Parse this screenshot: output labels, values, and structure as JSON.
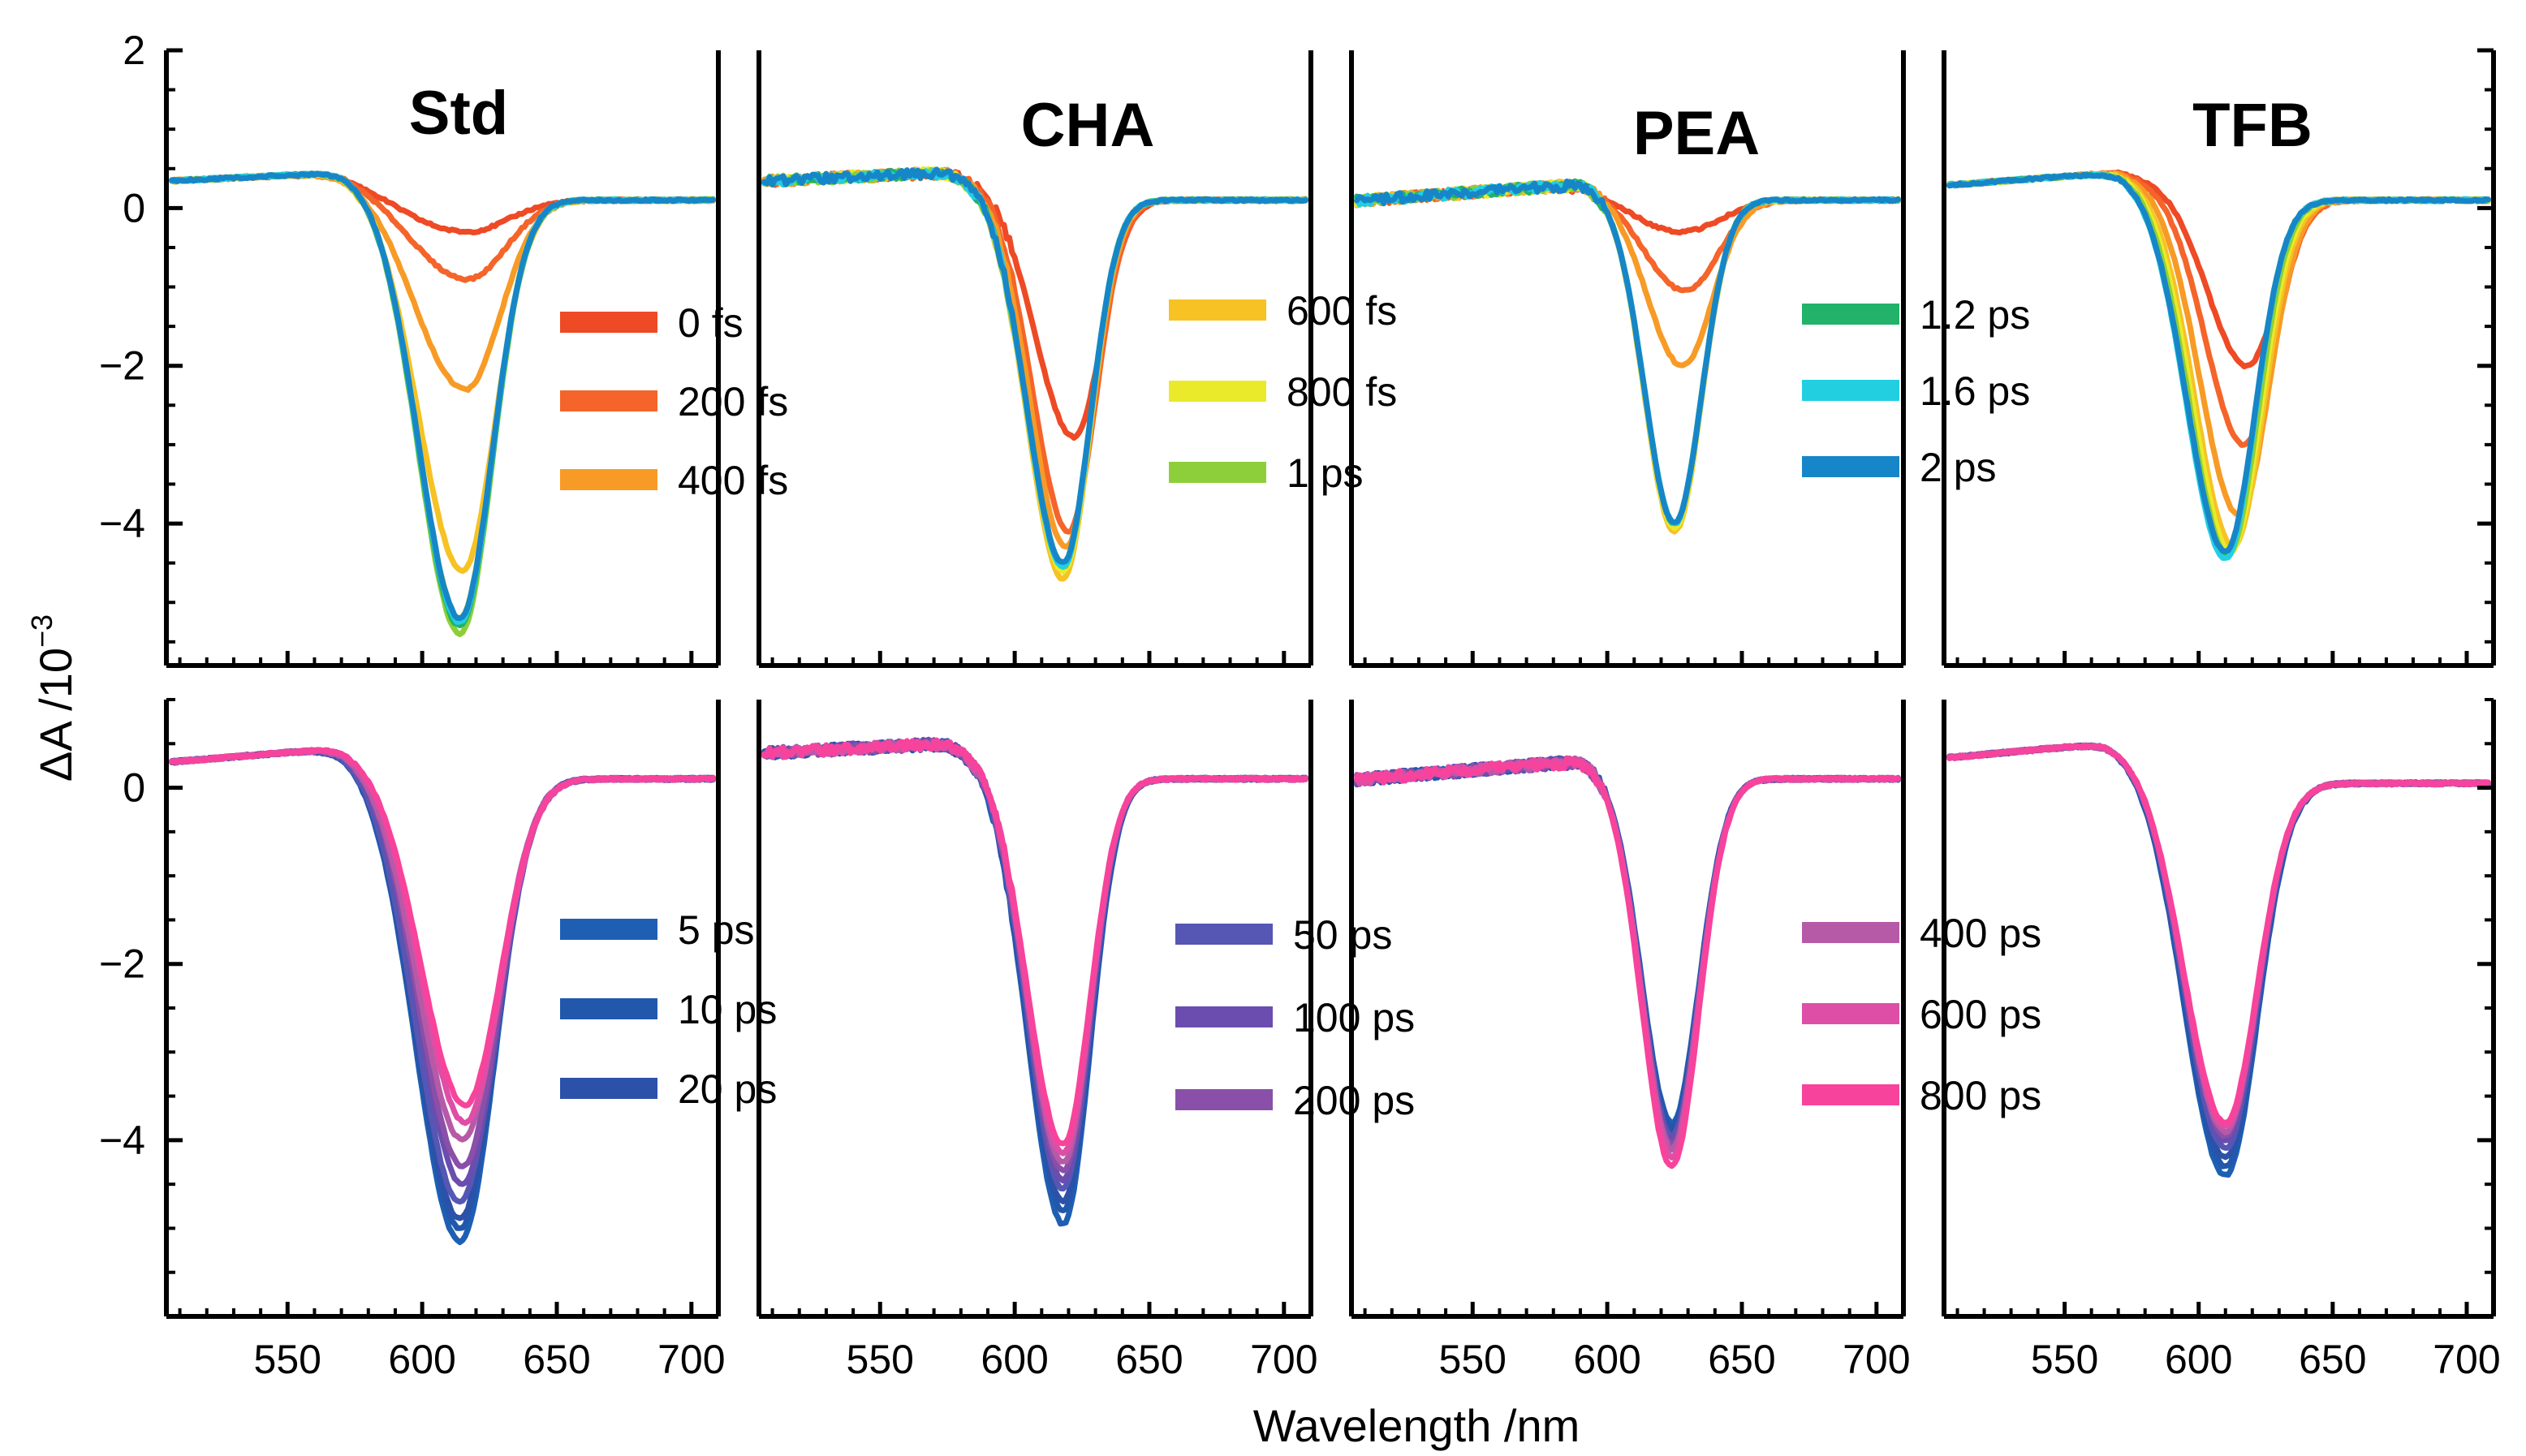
{
  "chart_data": {
    "type": "line",
    "title": "",
    "xlabel": "Wavelength /nm",
    "ylabel": "ΔA /10",
    "ylabel_exponent": "−3",
    "xlim": [
      505,
      710
    ],
    "x_ticks": [
      550,
      600,
      650,
      700
    ],
    "x_tick_labels": [
      "550",
      "600",
      "650",
      "700"
    ],
    "top_row": {
      "ylim": [
        -5.8,
        2.0
      ],
      "y_ticks": [
        2,
        0,
        -2,
        -4
      ],
      "y_tick_labels": [
        "2",
        "0",
        "−2",
        "−4"
      ]
    },
    "bottom_row": {
      "ylim": [
        -6.0,
        1.0
      ],
      "y_ticks": [
        0,
        -2,
        -4
      ],
      "y_tick_labels": [
        "0",
        "−2",
        "−4"
      ]
    },
    "legend_groups": [
      {
        "panel": "Std",
        "row": "top",
        "entries": [
          {
            "label": "0 fs",
            "color": "#ee4a25"
          },
          {
            "label": "200 fs",
            "color": "#f5642a"
          },
          {
            "label": "400 fs",
            "color": "#f79b26"
          }
        ]
      },
      {
        "panel": "CHA",
        "row": "top",
        "entries": [
          {
            "label": "600 fs",
            "color": "#f6c224"
          },
          {
            "label": "800 fs",
            "color": "#eaea2a"
          },
          {
            "label": "1 ps",
            "color": "#8dcf3a"
          }
        ]
      },
      {
        "panel": "PEA",
        "row": "top",
        "entries": [
          {
            "label": "1.2 ps",
            "color": "#22b26a"
          },
          {
            "label": "1.6 ps",
            "color": "#22cfe1"
          },
          {
            "label": "2 ps",
            "color": "#1786c8"
          }
        ]
      },
      {
        "panel": "Std",
        "row": "bottom",
        "entries": [
          {
            "label": "5 ps",
            "color": "#1e5fb4"
          },
          {
            "label": "10 ps",
            "color": "#2258ac"
          },
          {
            "label": "20 ps",
            "color": "#2b51a8"
          }
        ]
      },
      {
        "panel": "CHA",
        "row": "bottom",
        "entries": [
          {
            "label": "50 ps",
            "color": "#5656b4"
          },
          {
            "label": "100 ps",
            "color": "#6a4dae"
          },
          {
            "label": "200 ps",
            "color": "#8a4fa8"
          }
        ]
      },
      {
        "panel": "PEA",
        "row": "bottom",
        "entries": [
          {
            "label": "400 ps",
            "color": "#b65aa8"
          },
          {
            "label": "600 ps",
            "color": "#de4ea6"
          },
          {
            "label": "800 ps",
            "color": "#f7439c"
          }
        ]
      }
    ],
    "panels": [
      {
        "name": "Std",
        "top": {
          "background": {
            "x0": 510,
            "x1": 570,
            "b0": 0.35,
            "b1": 0.45,
            "decay_to": 620,
            "end": 0.1
          },
          "series": [
            {
              "name": "0 fs",
              "min": -0.3,
              "center": 617,
              "wl": 22,
              "wr": 15
            },
            {
              "name": "200 fs",
              "min": -0.9,
              "center": 617,
              "wl": 20,
              "wr": 14
            },
            {
              "name": "400 fs",
              "min": -2.3,
              "center": 616,
              "wl": 18,
              "wr": 13
            },
            {
              "name": "600 fs",
              "min": -4.6,
              "center": 615,
              "wl": 16,
              "wr": 12
            },
            {
              "name": "800 fs",
              "min": -5.2,
              "center": 614,
              "wl": 15,
              "wr": 12
            },
            {
              "name": "1 ps",
              "min": -5.4,
              "center": 614,
              "wl": 15,
              "wr": 12
            },
            {
              "name": "1.2 ps",
              "min": -5.3,
              "center": 614,
              "wl": 15,
              "wr": 12
            },
            {
              "name": "1.6 ps",
              "min": -5.25,
              "center": 614,
              "wl": 15,
              "wr": 12
            },
            {
              "name": "2 ps",
              "min": -5.2,
              "center": 614,
              "wl": 15,
              "wr": 12
            }
          ]
        },
        "bottom": {
          "background": {
            "x0": 510,
            "x1": 570,
            "b0": 0.3,
            "b1": 0.45,
            "decay_to": 625,
            "end": 0.1
          },
          "series": [
            {
              "name": "5 ps",
              "min": -5.15,
              "center": 614,
              "wl": 16,
              "wr": 13
            },
            {
              "name": "10 ps",
              "min": -5.0,
              "center": 614,
              "wl": 16,
              "wr": 13
            },
            {
              "name": "20 ps",
              "min": -4.9,
              "center": 614,
              "wl": 16,
              "wr": 13
            },
            {
              "name": "50 ps",
              "min": -4.7,
              "center": 614,
              "wl": 16,
              "wr": 13
            },
            {
              "name": "100 ps",
              "min": -4.5,
              "center": 615,
              "wl": 16,
              "wr": 13
            },
            {
              "name": "200 ps",
              "min": -4.3,
              "center": 615,
              "wl": 16,
              "wr": 13
            },
            {
              "name": "400 ps",
              "min": -4.0,
              "center": 615,
              "wl": 16,
              "wr": 13
            },
            {
              "name": "600 ps",
              "min": -3.8,
              "center": 616,
              "wl": 16,
              "wr": 13
            },
            {
              "name": "800 ps",
              "min": -3.6,
              "center": 616,
              "wl": 16,
              "wr": 13
            }
          ]
        }
      },
      {
        "name": "CHA",
        "top": {
          "background": {
            "x0": 510,
            "x1": 575,
            "b0": 0.35,
            "b1": 0.45,
            "decay_to": 630,
            "end": 0.1
          },
          "series": [
            {
              "name": "0 fs",
              "min": -2.9,
              "center": 622,
              "wl": 14,
              "wr": 10
            },
            {
              "name": "200 fs",
              "min": -4.1,
              "center": 620,
              "wl": 13,
              "wr": 10
            },
            {
              "name": "400 fs",
              "min": -4.3,
              "center": 619,
              "wl": 13,
              "wr": 10
            },
            {
              "name": "600 fs",
              "min": -4.7,
              "center": 618,
              "wl": 13,
              "wr": 10
            },
            {
              "name": "800 fs",
              "min": -4.6,
              "center": 618,
              "wl": 13,
              "wr": 10
            },
            {
              "name": "1 ps",
              "min": -4.55,
              "center": 618,
              "wl": 13,
              "wr": 10
            },
            {
              "name": "1.2 ps",
              "min": -4.5,
              "center": 618,
              "wl": 13,
              "wr": 10
            },
            {
              "name": "1.6 ps",
              "min": -4.55,
              "center": 618,
              "wl": 13,
              "wr": 10
            },
            {
              "name": "2 ps",
              "min": -4.5,
              "center": 618,
              "wl": 13,
              "wr": 10
            }
          ]
        },
        "bottom": {
          "background": {
            "x0": 510,
            "x1": 575,
            "b0": 0.4,
            "b1": 0.5,
            "decay_to": 632,
            "end": 0.1
          },
          "series": [
            {
              "name": "5 ps",
              "min": -4.95,
              "center": 618,
              "wl": 13,
              "wr": 10
            },
            {
              "name": "10 ps",
              "min": -4.8,
              "center": 618,
              "wl": 13,
              "wr": 10
            },
            {
              "name": "20 ps",
              "min": -4.7,
              "center": 618,
              "wl": 13,
              "wr": 10
            },
            {
              "name": "50 ps",
              "min": -4.55,
              "center": 618,
              "wl": 13,
              "wr": 10
            },
            {
              "name": "100 ps",
              "min": -4.45,
              "center": 618,
              "wl": 13,
              "wr": 10
            },
            {
              "name": "200 ps",
              "min": -4.35,
              "center": 618,
              "wl": 13,
              "wr": 10
            },
            {
              "name": "400 ps",
              "min": -4.25,
              "center": 618,
              "wl": 13,
              "wr": 10
            },
            {
              "name": "600 ps",
              "min": -4.15,
              "center": 618,
              "wl": 13,
              "wr": 10
            },
            {
              "name": "800 ps",
              "min": -4.05,
              "center": 618,
              "wl": 13,
              "wr": 10
            }
          ]
        }
      },
      {
        "name": "PEA",
        "top": {
          "background": {
            "x0": 510,
            "x1": 590,
            "b0": 0.1,
            "b1": 0.3,
            "decay_to": 640,
            "end": 0.1
          },
          "series": [
            {
              "name": "0 fs",
              "min": -0.3,
              "center": 628,
              "wl": 18,
              "wr": 14
            },
            {
              "name": "200 fs",
              "min": -1.05,
              "center": 629,
              "wl": 15,
              "wr": 12
            },
            {
              "name": "400 fs",
              "min": -2.0,
              "center": 628,
              "wl": 13,
              "wr": 11
            },
            {
              "name": "600 fs",
              "min": -4.1,
              "center": 625,
              "wl": 11,
              "wr": 10
            },
            {
              "name": "800 fs",
              "min": -4.05,
              "center": 625,
              "wl": 11,
              "wr": 10
            },
            {
              "name": "1 ps",
              "min": -4.0,
              "center": 625,
              "wl": 11,
              "wr": 10
            },
            {
              "name": "1.2 ps",
              "min": -4.0,
              "center": 625,
              "wl": 11,
              "wr": 10
            },
            {
              "name": "1.6 ps",
              "min": -4.0,
              "center": 625,
              "wl": 11,
              "wr": 10
            },
            {
              "name": "2 ps",
              "min": -4.0,
              "center": 625,
              "wl": 11,
              "wr": 10
            }
          ]
        },
        "bottom": {
          "background": {
            "x0": 510,
            "x1": 590,
            "b0": 0.1,
            "b1": 0.3,
            "decay_to": 645,
            "end": 0.1
          },
          "series": [
            {
              "name": "5 ps",
              "min": -3.8,
              "center": 624,
              "wl": 11,
              "wr": 10
            },
            {
              "name": "10 ps",
              "min": -3.85,
              "center": 624,
              "wl": 11,
              "wr": 10
            },
            {
              "name": "20 ps",
              "min": -3.9,
              "center": 624,
              "wl": 11,
              "wr": 10
            },
            {
              "name": "50 ps",
              "min": -3.95,
              "center": 624,
              "wl": 11,
              "wr": 10
            },
            {
              "name": "100 ps",
              "min": -4.0,
              "center": 624,
              "wl": 11,
              "wr": 10
            },
            {
              "name": "200 ps",
              "min": -4.05,
              "center": 624,
              "wl": 11,
              "wr": 10
            },
            {
              "name": "400 ps",
              "min": -4.1,
              "center": 624,
              "wl": 11,
              "wr": 10
            },
            {
              "name": "600 ps",
              "min": -4.2,
              "center": 624,
              "wl": 11,
              "wr": 10
            },
            {
              "name": "800 ps",
              "min": -4.3,
              "center": 624,
              "wl": 11,
              "wr": 10
            }
          ]
        }
      },
      {
        "name": "TFB",
        "top": {
          "background": {
            "x0": 510,
            "x1": 570,
            "b0": 0.3,
            "b1": 0.45,
            "decay_to": 625,
            "end": 0.1
          },
          "series": [
            {
              "name": "0 fs",
              "min": -2.0,
              "center": 618,
              "wl": 14,
              "wr": 11
            },
            {
              "name": "200 fs",
              "min": -3.0,
              "center": 617,
              "wl": 14,
              "wr": 11
            },
            {
              "name": "400 fs",
              "min": -3.9,
              "center": 615,
              "wl": 14,
              "wr": 11
            },
            {
              "name": "600 fs",
              "min": -4.3,
              "center": 613,
              "wl": 14,
              "wr": 11
            },
            {
              "name": "800 fs",
              "min": -4.35,
              "center": 612,
              "wl": 14,
              "wr": 11
            },
            {
              "name": "1 ps",
              "min": -4.4,
              "center": 611,
              "wl": 14,
              "wr": 11
            },
            {
              "name": "1.2 ps",
              "min": -4.4,
              "center": 610,
              "wl": 14,
              "wr": 11
            },
            {
              "name": "1.6 ps",
              "min": -4.45,
              "center": 610,
              "wl": 14,
              "wr": 11
            },
            {
              "name": "2 ps",
              "min": -4.35,
              "center": 610,
              "wl": 14,
              "wr": 11
            }
          ]
        },
        "bottom": {
          "background": {
            "x0": 510,
            "x1": 565,
            "b0": 0.35,
            "b1": 0.5,
            "decay_to": 640,
            "end": 0.05
          },
          "series": [
            {
              "name": "5 ps",
              "min": -4.4,
              "center": 610,
              "wl": 15,
              "wr": 12
            },
            {
              "name": "10 ps",
              "min": -4.3,
              "center": 610,
              "wl": 15,
              "wr": 12
            },
            {
              "name": "20 ps",
              "min": -4.2,
              "center": 610,
              "wl": 15,
              "wr": 12
            },
            {
              "name": "50 ps",
              "min": -4.1,
              "center": 610,
              "wl": 15,
              "wr": 12
            },
            {
              "name": "100 ps",
              "min": -4.0,
              "center": 610,
              "wl": 15,
              "wr": 12
            },
            {
              "name": "200 ps",
              "min": -3.95,
              "center": 610,
              "wl": 15,
              "wr": 12
            },
            {
              "name": "400 ps",
              "min": -3.9,
              "center": 610,
              "wl": 15,
              "wr": 12
            },
            {
              "name": "600 ps",
              "min": -3.85,
              "center": 610,
              "wl": 15,
              "wr": 12
            },
            {
              "name": "800 ps",
              "min": -3.8,
              "center": 610,
              "wl": 15,
              "wr": 12
            }
          ]
        }
      }
    ]
  }
}
